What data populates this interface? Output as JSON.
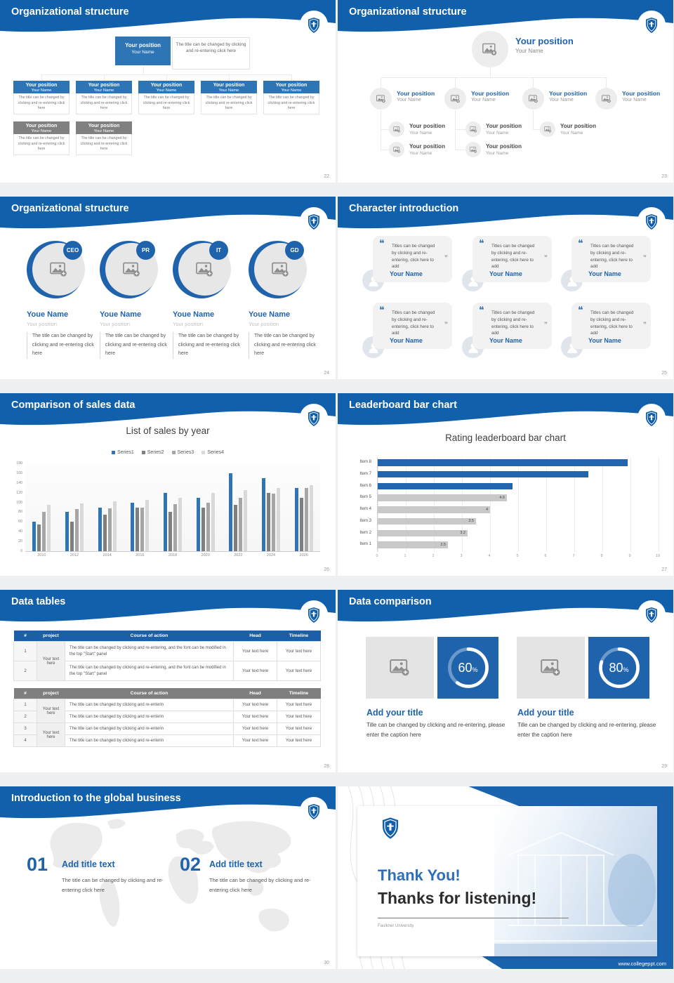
{
  "slides": {
    "s22": {
      "title": "Organizational structure",
      "page": "22",
      "root": {
        "position": "Your position",
        "name": "Your Name",
        "desc": "The title can be changed by clicking and re-entering click here"
      },
      "nodes": [
        {
          "position": "Your position",
          "name": "Your Name",
          "desc": "The title can be changed by clicking and re-entering click here"
        },
        {
          "position": "Your position",
          "name": "Your Name",
          "desc": "The title can be changed by clicking and re-entering click here"
        },
        {
          "position": "Your position",
          "name": "Your Name",
          "desc": "The title can be changed by clicking and re-entering click here"
        },
        {
          "position": "Your position",
          "name": "Your Name",
          "desc": "The title can be changed by clicking and re-entering click here"
        },
        {
          "position": "Your position",
          "name": "Your Name",
          "desc": "The title can be changed by clicking and re-entering click here"
        },
        {
          "position": "Your position",
          "name": "Your Name",
          "desc": "The title can be changed by clicking and re-entering click here"
        },
        {
          "position": "Your position",
          "name": "Your Name",
          "desc": "The title can be changed by clicking and re-entering click here"
        }
      ]
    },
    "s23": {
      "title": "Organizational structure",
      "page": "23",
      "root": {
        "position": "Your position",
        "name": "Your Name"
      },
      "level1": [
        {
          "position": "Your position",
          "name": "Your Name"
        },
        {
          "position": "Your position",
          "name": "Your Name"
        },
        {
          "position": "Your position",
          "name": "Your Name"
        },
        {
          "position": "Your position",
          "name": "Your Name"
        }
      ],
      "level2": [
        {
          "position": "Your position",
          "name": "Your Name"
        },
        {
          "position": "Your position",
          "name": "Your Name"
        },
        {
          "position": "Your position",
          "name": "Your Name"
        }
      ],
      "level3": [
        {
          "position": "Your position",
          "name": "Your Name"
        },
        {
          "position": "Your position",
          "name": "Your Name"
        }
      ]
    },
    "s24": {
      "title": "Organizational structure",
      "page": "24",
      "members": [
        {
          "badge": "CEO",
          "name": "Youe Name",
          "position": "Your position",
          "desc": "The title can be changed by clicking and re-entering click here"
        },
        {
          "badge": "PR",
          "name": "Youe Name",
          "position": "Your position",
          "desc": "The title can be changed by clicking and re-entering click here"
        },
        {
          "badge": "IT",
          "name": "Youe Name",
          "position": "Your position",
          "desc": "The title can be changed by clicking and re-entering click here"
        },
        {
          "badge": "GD",
          "name": "Youe Name",
          "position": "Your position",
          "desc": "The title can be changed by clicking and re-entering click here"
        }
      ]
    },
    "s25": {
      "title": "Character introduction",
      "page": "25",
      "cards": [
        {
          "quote": "Titles can be changed by clicking and re-entering, click here to add",
          "name": "Your Name"
        },
        {
          "quote": "Titles can be changed by clicking and re-entering, click here to add",
          "name": "Your Name"
        },
        {
          "quote": "Titles can be changed by clicking and re-entering, click here to add",
          "name": "Your Name"
        },
        {
          "quote": "Titles can be changed by clicking and re-entering, click here to add",
          "name": "Your Name"
        },
        {
          "quote": "Titles can be changed by clicking and re-entering, click here to add",
          "name": "Your Name"
        },
        {
          "quote": "Titles can be changed by clicking and re-entering, click here to add",
          "name": "Your Name"
        }
      ]
    },
    "s26": {
      "title": "Comparison of sales data",
      "page": "26"
    },
    "s27": {
      "title": "Leaderboard bar chart",
      "page": "27"
    },
    "s28": {
      "title": "Data tables",
      "page": "28",
      "table1": {
        "headers": [
          "#",
          "project",
          "Course of action",
          "Head",
          "Timeline"
        ],
        "project": "Your text here",
        "rows": [
          {
            "num": "1",
            "course": "The title can be changed by clicking and re-entering, and the font can be modified in the top \"Start\" panel",
            "head": "Your text here",
            "timeline": "Your text here"
          },
          {
            "num": "2",
            "course": "The title can be changed by clicking and re-entering, and the font can be modified in the top \"Start\" panel",
            "head": "Your text here",
            "timeline": "Your text here"
          }
        ]
      },
      "table2": {
        "headers": [
          "#",
          "project",
          "Course of action",
          "Head",
          "Timeline"
        ],
        "projects": [
          "Your text here",
          "Your text here"
        ],
        "rows": [
          {
            "num": "1",
            "course": "The title can be changed by clicking and re-enterin",
            "head": "Your text here",
            "timeline": "Your text here"
          },
          {
            "num": "2",
            "course": "The title can be changed by clicking and re-enterin",
            "head": "Your text here",
            "timeline": "Your text here"
          },
          {
            "num": "3",
            "course": "The title can be changed by clicking and re-enterin",
            "head": "Your text here",
            "timeline": "Your text here"
          },
          {
            "num": "4",
            "course": "The title can be changed by clicking and re-enterin",
            "head": "Your text here",
            "timeline": "Your text here"
          }
        ]
      }
    },
    "s29": {
      "title": "Data comparison",
      "page": "29",
      "blocks": [
        {
          "percent": "60",
          "unit": "%",
          "title": "Add your title",
          "caption": "Tille can be changed by clicking and re-entering, please enter the caption here"
        },
        {
          "percent": "80",
          "unit": "%",
          "title": "Add your title",
          "caption": "Tille can be changed by clicking and re-entering, please enter the caption here"
        }
      ]
    },
    "s30": {
      "title": "Introduction to the global business",
      "page": "30",
      "items": [
        {
          "num": "01",
          "title": "Add title text",
          "desc": "The title can be changed by clicking and re-entering click here"
        },
        {
          "num": "02",
          "title": "Add title text",
          "desc": "The title can be changed by clicking and re-entering click here"
        }
      ]
    },
    "thanks": {
      "line1": "Thank You!",
      "line2": "Thanks for listening!",
      "org": "Faulkner University",
      "url": "www.collegeppt.com"
    }
  },
  "chart_data": [
    {
      "type": "bar",
      "title": "List of sales by year",
      "categories": [
        "2010",
        "2012",
        "2014",
        "2016",
        "2018",
        "2020",
        "2022",
        "2024",
        "2026"
      ],
      "series": [
        {
          "name": "Series1",
          "color": "#2e75b6",
          "values": [
            60,
            80,
            90,
            100,
            120,
            110,
            160,
            150,
            130
          ]
        },
        {
          "name": "Series2",
          "color": "#7f7f7f",
          "values": [
            55,
            60,
            75,
            90,
            80,
            90,
            95,
            120,
            110
          ]
        },
        {
          "name": "Series3",
          "color": "#a6a6a6",
          "values": [
            80,
            86,
            88,
            90,
            96,
            100,
            110,
            118,
            130
          ]
        },
        {
          "name": "Series4",
          "color": "#d9d9d9",
          "values": [
            95,
            98,
            102,
            105,
            110,
            120,
            125,
            130,
            135
          ]
        }
      ],
      "ylim": [
        0,
        180
      ],
      "ytick": 20,
      "legend_position": "top",
      "grid": false
    },
    {
      "type": "hbar",
      "title": "Rating leaderboard bar chart",
      "categories": [
        "Item 8",
        "Item 7",
        "Item 6",
        "Item 5",
        "Item 4",
        "Item 3",
        "Item 2",
        "Item 1"
      ],
      "values": [
        8.9,
        7.5,
        4.8,
        4.6,
        4,
        3.5,
        3.2,
        2.5
      ],
      "labels": [
        "",
        "",
        "",
        "4.6",
        "4",
        "3.5",
        "3.2",
        "2.5"
      ],
      "colors": [
        "#2065ae",
        "#2065ae",
        "#2065ae",
        "#c9c9c9",
        "#c9c9c9",
        "#c9c9c9",
        "#c9c9c9",
        "#c9c9c9"
      ],
      "xlim": [
        0,
        10
      ],
      "xtick": 1,
      "grid": true
    }
  ]
}
